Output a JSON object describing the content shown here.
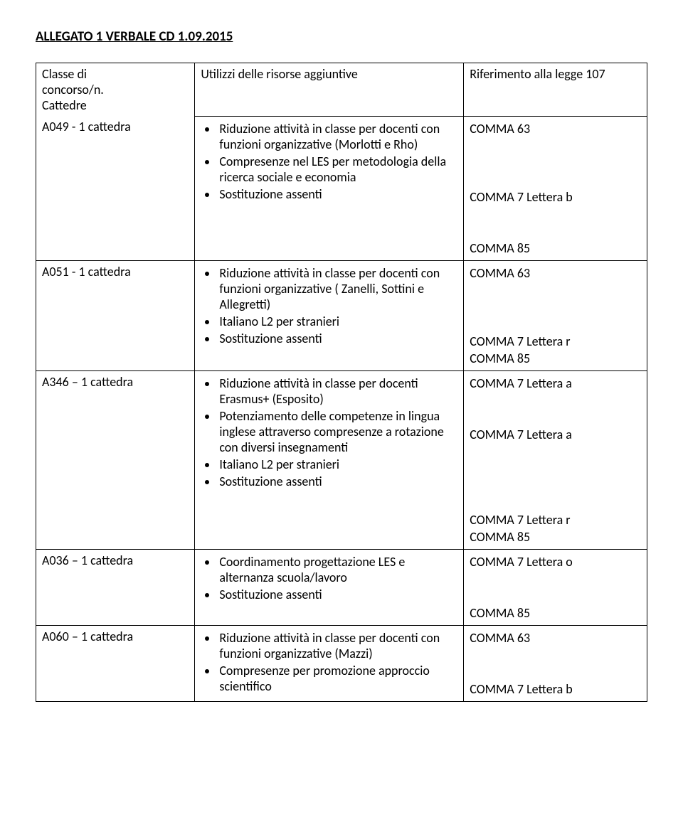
{
  "title": "ALLEGATO 1 VERBALE CD 1.09.2015",
  "header": {
    "col1a": "Classe di",
    "col1b": "concorso/n.",
    "col1c": "Cattedre",
    "col2": "Utilizzi delle risorse aggiuntive",
    "col3": "Riferimento alla legge 107"
  },
  "rows": {
    "a049": {
      "label": "A049 - 1 cattedra",
      "items": [
        "Riduzione attività in classe per docenti con funzioni organizzative (Morlotti  e Rho)",
        "Compresenze nel LES per metodologia della ricerca sociale e economia",
        "Sostituzione assenti"
      ],
      "refs": [
        "COMMA 63",
        "",
        "",
        "",
        "COMMA 7 Lettera b",
        "",
        "",
        "COMMA 85"
      ]
    },
    "a051": {
      "label": "A051 - 1 cattedra",
      "items": [
        "Riduzione attività in classe per docenti con funzioni organizzative ( Zanelli, Sottini e Allegretti)",
        "Italiano L2 per stranieri",
        "Sostituzione assenti"
      ],
      "refs": [
        "COMMA 63",
        "",
        "",
        "",
        "COMMA 7 Lettera r",
        "COMMA 85"
      ]
    },
    "a346": {
      "label": "A346 – 1 cattedra",
      "items": [
        "Riduzione attività in classe per docenti  Erasmus+ (Esposito)",
        "Potenziamento delle competenze in lingua inglese attraverso compresenze a rotazione con diversi insegnamenti",
        "Italiano L2 per stranieri",
        "Sostituzione assenti"
      ],
      "refs": [
        "COMMA 7 Lettera a",
        "",
        "",
        "COMMA 7 Lettera a",
        "",
        "",
        "",
        "",
        "COMMA 7 Lettera r",
        "COMMA 85"
      ]
    },
    "a036": {
      "label": "A036 – 1 cattedra",
      "items": [
        "Coordinamento progettazione LES e alternanza scuola/lavoro",
        "Sostituzione assenti"
      ],
      "refs": [
        "COMMA 7 Lettera o",
        "",
        "",
        "COMMA 85"
      ]
    },
    "a060": {
      "label": "A060 – 1 cattedra",
      "items": [
        "Riduzione attività in classe per docenti con funzioni organizzative (Mazzi)",
        "Compresenze per promozione approccio scientifico"
      ],
      "refs": [
        "COMMA 63",
        "",
        "",
        "COMMA 7 Lettera b"
      ]
    }
  }
}
